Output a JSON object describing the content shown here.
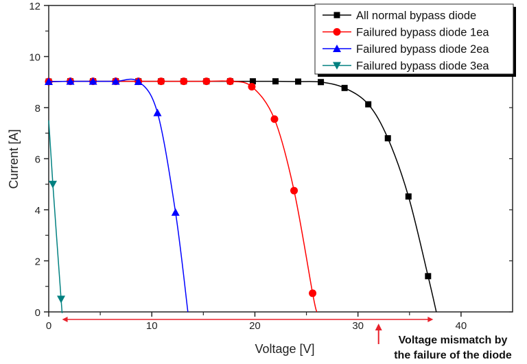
{
  "chart_data": {
    "type": "line",
    "title": "",
    "xlabel": "Voltage [V]",
    "ylabel": "Current [A]",
    "xlim": [
      0,
      45
    ],
    "ylim": [
      0,
      12
    ],
    "xticks": [
      0,
      10,
      20,
      30,
      40
    ],
    "yticks": [
      0,
      2,
      4,
      6,
      8,
      10,
      12
    ],
    "grid": false,
    "legend_position": "top-right",
    "series": [
      {
        "name": "All normal bypass diode",
        "color": "#000000",
        "marker": "square",
        "x": [
          0,
          2.1,
          4.3,
          6.5,
          8.7,
          10.9,
          13.1,
          15.3,
          17.6,
          19.8,
          22.0,
          24.2,
          26.4,
          28.7,
          31.0,
          32.9,
          34.9,
          36.8
        ],
        "y": [
          9.02,
          9.03,
          9.03,
          9.03,
          9.03,
          9.03,
          9.03,
          9.03,
          9.03,
          9.03,
          9.03,
          9.02,
          9.0,
          8.77,
          8.13,
          6.8,
          4.52,
          1.4
        ],
        "end": [
          37.6,
          0
        ]
      },
      {
        "name": "Failured bypass diode 1ea",
        "color": "#ff0000",
        "marker": "circle",
        "x": [
          0,
          2.1,
          4.3,
          6.5,
          8.7,
          10.9,
          13.1,
          15.3,
          17.6,
          19.7,
          21.9,
          23.8,
          25.6
        ],
        "y": [
          9.02,
          9.03,
          9.03,
          9.03,
          9.03,
          9.03,
          9.03,
          9.03,
          9.03,
          8.82,
          7.55,
          4.75,
          0.73
        ],
        "end": [
          26.0,
          0
        ]
      },
      {
        "name": "Failured bypass diode 2ea",
        "color": "#0000ff",
        "marker": "triangle-up",
        "x": [
          0,
          2.1,
          4.3,
          6.5,
          8.7,
          10.55,
          12.3
        ],
        "y": [
          9.02,
          9.03,
          9.03,
          9.03,
          9.02,
          7.8,
          3.9
        ],
        "end": [
          13.5,
          0
        ]
      },
      {
        "name": "Failured bypass diode 3ea",
        "color": "#008080",
        "marker": "triangle-down",
        "x": [
          0,
          0.4,
          1.2
        ],
        "y": [
          7.5,
          5.0,
          0.5
        ],
        "end": [
          1.3,
          0
        ],
        "first_unmarked": true
      }
    ],
    "annotation": {
      "text_line1": "Voltage mismatch by",
      "text_line2": "the failure of the diode",
      "range_x": [
        1.3,
        37.3
      ],
      "pointer_x": 32,
      "color": "#e8202a"
    }
  }
}
